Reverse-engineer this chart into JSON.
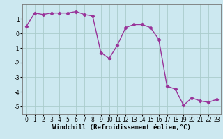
{
  "x": [
    0,
    1,
    2,
    3,
    4,
    5,
    6,
    7,
    8,
    9,
    10,
    11,
    12,
    13,
    14,
    15,
    16,
    17,
    18,
    19,
    20,
    21,
    22,
    23
  ],
  "y": [
    0.5,
    1.4,
    1.3,
    1.4,
    1.4,
    1.4,
    1.5,
    1.3,
    1.2,
    -1.3,
    -1.7,
    -0.8,
    0.4,
    0.6,
    0.6,
    0.4,
    -0.4,
    -3.6,
    -3.8,
    -4.9,
    -4.4,
    -4.6,
    -4.7,
    -4.5
  ],
  "line_color": "#993399",
  "marker": "D",
  "marker_size": 2.2,
  "bg_color": "#cce8f0",
  "grid_color": "#aacccc",
  "xlabel": "Windchill (Refroidissement éolien,°C)",
  "xlim": [
    -0.5,
    23.5
  ],
  "ylim": [
    -5.5,
    2.0
  ],
  "yticks": [
    -5,
    -4,
    -3,
    -2,
    -1,
    0,
    1
  ],
  "xticks": [
    0,
    1,
    2,
    3,
    4,
    5,
    6,
    7,
    8,
    9,
    10,
    11,
    12,
    13,
    14,
    15,
    16,
    17,
    18,
    19,
    20,
    21,
    22,
    23
  ],
  "tick_fontsize": 5.5,
  "xlabel_fontsize": 6.5,
  "line_width": 1.0
}
